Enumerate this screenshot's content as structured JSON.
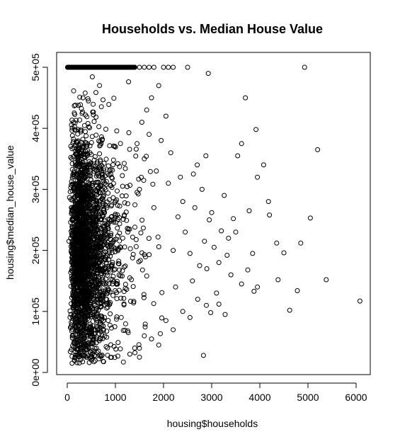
{
  "chart_data": {
    "type": "scatter",
    "title": "Households vs. Median House Value",
    "xlabel": "housing$households",
    "ylabel": "housing$median_house_value",
    "xlim": [
      0,
      6100
    ],
    "ylim": [
      15000,
      500001
    ],
    "xticks": [
      0,
      1000,
      2000,
      3000,
      4000,
      5000,
      6000
    ],
    "xtick_labels": [
      "0",
      "1000",
      "2000",
      "3000",
      "4000",
      "5000",
      "6000"
    ],
    "yticks": [
      0,
      100000,
      200000,
      300000,
      400000,
      500000
    ],
    "ytick_labels": [
      "0e+00",
      "1e+05",
      "2e+05",
      "3e+05",
      "4e+05",
      "5e+05"
    ],
    "grid": false,
    "legend": "none",
    "marker": "open-circle",
    "points": [
      [
        4930,
        500000
      ],
      [
        2500,
        500000
      ],
      [
        2930,
        490000
      ],
      [
        3700,
        450000
      ],
      [
        3920,
        398000
      ],
      [
        5200,
        365000
      ],
      [
        3620,
        375000
      ],
      [
        4080,
        340000
      ],
      [
        3540,
        355000
      ],
      [
        3950,
        320000
      ],
      [
        4180,
        280000
      ],
      [
        3780,
        265000
      ],
      [
        4200,
        258000
      ],
      [
        3450,
        252000
      ],
      [
        5050,
        253000
      ],
      [
        3260,
        290000
      ],
      [
        3000,
        262000
      ],
      [
        3200,
        232000
      ],
      [
        3350,
        220000
      ],
      [
        3500,
        230000
      ],
      [
        4350,
        212000
      ],
      [
        4850,
        212000
      ],
      [
        4500,
        196000
      ],
      [
        3850,
        195000
      ],
      [
        3320,
        192000
      ],
      [
        3750,
        168000
      ],
      [
        3620,
        145000
      ],
      [
        4380,
        152000
      ],
      [
        5380,
        152000
      ],
      [
        3950,
        140000
      ],
      [
        3880,
        133000
      ],
      [
        4780,
        134000
      ],
      [
        4620,
        102000
      ],
      [
        6080,
        117000
      ],
      [
        3150,
        112000
      ],
      [
        3280,
        95000
      ],
      [
        2980,
        98000
      ],
      [
        2830,
        28000
      ],
      [
        2890,
        110000
      ],
      [
        3100,
        130000
      ],
      [
        2710,
        120000
      ],
      [
        2600,
        150000
      ],
      [
        2750,
        175000
      ],
      [
        2850,
        215000
      ],
      [
        2950,
        250000
      ],
      [
        2800,
        300000
      ],
      [
        2880,
        355000
      ],
      [
        2700,
        340000
      ],
      [
        2650,
        270000
      ],
      [
        2550,
        195000
      ],
      [
        2450,
        230000
      ],
      [
        2400,
        280000
      ],
      [
        2350,
        320000
      ],
      [
        2300,
        255000
      ],
      [
        2250,
        140000
      ],
      [
        2200,
        200000
      ],
      [
        2150,
        360000
      ],
      [
        2100,
        310000
      ],
      [
        2050,
        420000
      ],
      [
        1950,
        380000
      ],
      [
        1900,
        470000
      ],
      [
        1850,
        330000
      ],
      [
        1800,
        270000
      ],
      [
        1750,
        450000
      ],
      [
        1700,
        390000
      ],
      [
        1650,
        430000
      ],
      [
        1600,
        350000
      ],
      [
        1550,
        410000
      ],
      [
        1500,
        300000
      ],
      [
        1450,
        375000
      ],
      [
        2550,
        90000
      ],
      [
        2400,
        100000
      ],
      [
        2200,
        70000
      ],
      [
        2050,
        85000
      ],
      [
        1900,
        45000
      ],
      [
        1750,
        55000
      ],
      [
        1600,
        60000
      ],
      [
        1500,
        25000
      ],
      [
        1400,
        40000
      ],
      [
        1300,
        30000
      ],
      [
        2000,
        500000
      ],
      [
        2100,
        500000
      ],
      [
        2200,
        500000
      ],
      [
        1800,
        500000
      ],
      [
        1700,
        500000
      ],
      [
        1600,
        500000
      ],
      [
        1500,
        500000
      ],
      [
        1400,
        500000
      ],
      [
        1300,
        500000
      ],
      [
        1200,
        500000
      ],
      [
        3050,
        205000
      ],
      [
        3150,
        180000
      ],
      [
        3400,
        160000
      ],
      [
        2900,
        170000
      ],
      [
        2620,
        325000
      ]
    ]
  }
}
